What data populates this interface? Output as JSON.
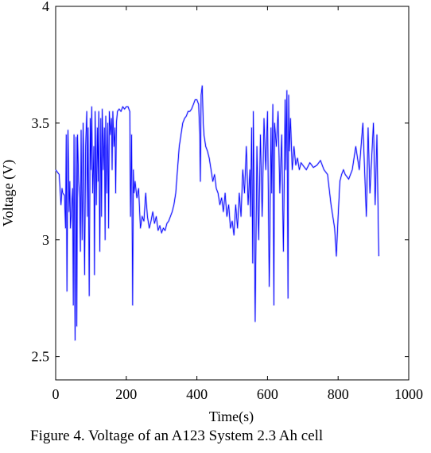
{
  "chart_data": {
    "type": "line",
    "title": "",
    "xlabel": "Time(s)",
    "ylabel": "Voltage (V)",
    "xlim": [
      0,
      1000
    ],
    "ylim": [
      2.4,
      4.0
    ],
    "xticks": [
      0,
      200,
      400,
      600,
      800,
      1000
    ],
    "yticks": [
      2.5,
      3,
      3.5,
      4
    ],
    "xtick_labels": [
      "0",
      "200",
      "400",
      "600",
      "800",
      "1000"
    ],
    "ytick_labels": [
      "2.5",
      "3",
      "3.5",
      "4"
    ],
    "grid": false,
    "legend": "none",
    "series": [
      {
        "color": "#0000ff",
        "x": [
          0,
          5,
          10,
          15,
          18,
          20,
          25,
          28,
          30,
          32,
          35,
          38,
          40,
          42,
          45,
          48,
          50,
          52,
          55,
          58,
          60,
          62,
          65,
          68,
          70,
          72,
          75,
          78,
          80,
          82,
          85,
          88,
          90,
          92,
          95,
          98,
          100,
          102,
          105,
          108,
          110,
          112,
          115,
          118,
          120,
          122,
          125,
          128,
          130,
          132,
          135,
          138,
          140,
          142,
          145,
          148,
          150,
          152,
          155,
          158,
          160,
          162,
          165,
          168,
          170,
          172,
          175,
          180,
          185,
          190,
          195,
          200,
          205,
          210,
          212,
          215,
          218,
          220,
          222,
          225,
          230,
          235,
          240,
          245,
          250,
          255,
          260,
          265,
          270,
          275,
          280,
          285,
          290,
          295,
          300,
          305,
          310,
          315,
          320,
          325,
          330,
          335,
          340,
          345,
          350,
          355,
          360,
          365,
          370,
          375,
          380,
          385,
          390,
          395,
          400,
          405,
          408,
          410,
          412,
          415,
          418,
          420,
          425,
          430,
          435,
          440,
          445,
          450,
          455,
          460,
          465,
          470,
          475,
          480,
          485,
          490,
          495,
          500,
          505,
          510,
          515,
          520,
          525,
          530,
          535,
          540,
          545,
          550,
          552,
          555,
          558,
          560,
          565,
          570,
          575,
          580,
          585,
          590,
          595,
          600,
          605,
          610,
          612,
          615,
          618,
          620,
          625,
          630,
          635,
          640,
          645,
          650,
          652,
          655,
          658,
          660,
          662,
          665,
          670,
          675,
          680,
          685,
          690,
          695,
          700,
          710,
          720,
          730,
          740,
          750,
          760,
          770,
          780,
          790,
          795,
          800,
          805,
          810,
          815,
          820,
          830,
          840,
          850,
          860,
          870,
          880,
          885,
          890,
          895,
          900,
          905,
          910,
          915
        ],
        "y": [
          3.3,
          3.29,
          3.28,
          3.15,
          3.22,
          3.2,
          3.19,
          3.05,
          3.45,
          2.78,
          3.47,
          3.12,
          3.25,
          3.05,
          3.14,
          3.22,
          2.72,
          3.45,
          2.57,
          3.44,
          2.63,
          3.45,
          3.25,
          3.18,
          2.95,
          3.47,
          3.0,
          3.5,
          3.2,
          2.85,
          3.4,
          3.55,
          3.1,
          3.48,
          2.76,
          3.52,
          3.3,
          3.57,
          3.2,
          3.4,
          2.85,
          3.55,
          3.15,
          3.48,
          3.25,
          3.55,
          2.95,
          3.52,
          3.1,
          3.56,
          3.3,
          3.48,
          3.0,
          3.53,
          3.2,
          3.5,
          3.05,
          3.55,
          3.45,
          3.52,
          3.3,
          3.55,
          3.4,
          3.48,
          3.2,
          3.5,
          3.55,
          3.56,
          3.55,
          3.57,
          3.56,
          3.57,
          3.57,
          3.55,
          3.1,
          3.45,
          2.72,
          3.3,
          3.2,
          3.25,
          3.18,
          3.22,
          3.05,
          3.1,
          3.08,
          3.2,
          3.1,
          3.05,
          3.08,
          3.12,
          3.07,
          3.1,
          3.04,
          3.06,
          3.03,
          3.05,
          3.04,
          3.07,
          3.08,
          3.1,
          3.12,
          3.15,
          3.2,
          3.3,
          3.4,
          3.45,
          3.5,
          3.52,
          3.53,
          3.55,
          3.55,
          3.56,
          3.58,
          3.6,
          3.6,
          3.58,
          3.45,
          3.25,
          3.62,
          3.66,
          3.5,
          3.45,
          3.4,
          3.38,
          3.35,
          3.3,
          3.25,
          3.28,
          3.22,
          3.2,
          3.15,
          3.18,
          3.12,
          3.2,
          3.1,
          3.15,
          3.05,
          3.08,
          3.02,
          3.15,
          3.05,
          3.2,
          3.1,
          3.3,
          3.2,
          3.4,
          3.15,
          3.3,
          3.1,
          3.48,
          2.9,
          3.55,
          2.65,
          3.4,
          3.0,
          3.45,
          3.1,
          3.52,
          3.3,
          3.55,
          2.8,
          3.48,
          3.2,
          3.58,
          2.72,
          3.5,
          3.4,
          3.55,
          3.2,
          3.45,
          2.95,
          3.6,
          3.3,
          3.64,
          2.75,
          3.62,
          3.38,
          3.52,
          3.3,
          3.4,
          3.32,
          3.35,
          3.3,
          3.33,
          3.32,
          3.3,
          3.33,
          3.31,
          3.32,
          3.34,
          3.3,
          3.28,
          3.15,
          3.05,
          2.93,
          3.1,
          3.25,
          3.28,
          3.3,
          3.28,
          3.26,
          3.3,
          3.4,
          3.3,
          3.5,
          3.1,
          3.48,
          3.2,
          3.35,
          3.5,
          3.15,
          3.45,
          2.93
        ]
      }
    ]
  },
  "caption": "Figure 4. Voltage of an A123 System 2.3 Ah cell"
}
